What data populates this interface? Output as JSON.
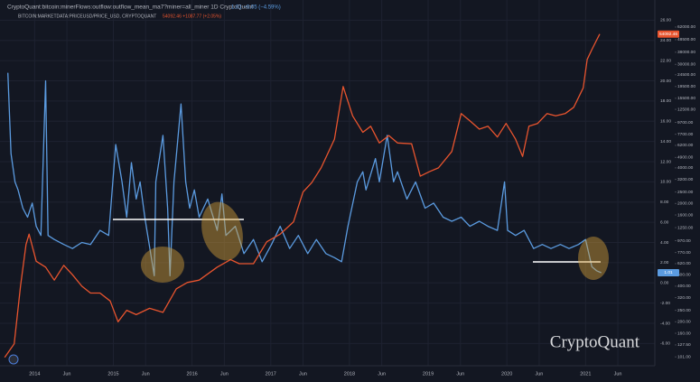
{
  "chart_data": {
    "type": "line",
    "watermark": "CryptoQuant",
    "grid": true,
    "y2log": true,
    "xlim": [
      2013.56,
      2021.88
    ],
    "ylim": [
      -8.2,
      28
    ],
    "y2lim": [
      85,
      105000
    ],
    "xticks": [
      2014,
      {
        "value": 2014.41,
        "label": "Jun"
      },
      2015,
      {
        "value": 2015.41,
        "label": "Jun"
      },
      2016,
      {
        "value": 2016.41,
        "label": "Jun"
      },
      2017,
      {
        "value": 2017.41,
        "label": "Jun"
      },
      2018,
      {
        "value": 2018.41,
        "label": "Jun"
      },
      2019,
      {
        "value": 2019.41,
        "label": "Jun"
      },
      2020,
      {
        "value": 2020.41,
        "label": "Jun"
      },
      2021,
      {
        "value": 2021.41,
        "label": "Jun"
      }
    ],
    "yticks": [
      {
        "value": 26,
        "label": "26.00"
      },
      {
        "value": 24,
        "label": "24.00"
      },
      {
        "value": 22,
        "label": "22.00"
      },
      {
        "value": 20,
        "label": "20.00"
      },
      {
        "value": 18,
        "label": "18.00"
      },
      {
        "value": 16,
        "label": "16.00"
      },
      {
        "value": 14,
        "label": "14.00"
      },
      {
        "value": 12,
        "label": "12.00"
      },
      {
        "value": 10,
        "label": "10.00"
      },
      {
        "value": 8,
        "label": "8.00"
      },
      {
        "value": 6,
        "label": "6.00"
      },
      {
        "value": 4,
        "label": "4.00"
      },
      {
        "value": 2,
        "label": "2.00"
      },
      {
        "value": 0,
        "label": "0.00"
      },
      {
        "value": -2,
        "label": "-2.00"
      },
      {
        "value": -4,
        "label": "-4.00"
      },
      {
        "value": -6,
        "label": "-6.00"
      }
    ],
    "y2ticks": [
      {
        "value": 62000,
        "label": "62000.00"
      },
      {
        "value": 48500,
        "label": "48500.00"
      },
      {
        "value": 38000,
        "label": "38000.00"
      },
      {
        "value": 30000,
        "label": "30000.00"
      },
      {
        "value": 24500,
        "label": "24500.00"
      },
      {
        "value": 19500,
        "label": "19500.00"
      },
      {
        "value": 15500,
        "label": "15500.00"
      },
      {
        "value": 12500,
        "label": "12500.00"
      },
      {
        "value": 9700,
        "label": "9700.00"
      },
      {
        "value": 7700,
        "label": "7700.00"
      },
      {
        "value": 6200,
        "label": "6200.00"
      },
      {
        "value": 4900,
        "label": "4900.00"
      },
      {
        "value": 4000,
        "label": "4000.00"
      },
      {
        "value": 3200,
        "label": "3200.00"
      },
      {
        "value": 2500,
        "label": "2500.00"
      },
      {
        "value": 2000,
        "label": "2000.00"
      },
      {
        "value": 1600,
        "label": "1600.00"
      },
      {
        "value": 1250,
        "label": "1250.00"
      },
      {
        "value": 970,
        "label": "970.00"
      },
      {
        "value": 770,
        "label": "770.00"
      },
      {
        "value": 620,
        "label": "620.00"
      },
      {
        "value": 500,
        "label": "500.00"
      },
      {
        "value": 400,
        "label": "400.00"
      },
      {
        "value": 320,
        "label": "320.00"
      },
      {
        "value": 250,
        "label": "250.00"
      },
      {
        "value": 200,
        "label": "200.00"
      },
      {
        "value": 160,
        "label": "160.00"
      },
      {
        "value": 127.5,
        "label": "127.50"
      },
      {
        "value": 101,
        "label": "101.00"
      }
    ],
    "series": [
      {
        "name": "CryptoQuant:bitcoin:minerFlows:outflow:outflow_mean_ma7?miner=all_miner  1D  CryptoQuant",
        "readout": "1.01  −0.05 (−4.59%)",
        "color": "#5b9be0",
        "axis": "y",
        "last_value": 1.01,
        "x": [
          2013.66,
          2013.7,
          2013.75,
          2013.79,
          2013.85,
          2013.91,
          2013.97,
          2014.02,
          2014.08,
          2014.14,
          2014.17,
          2014.25,
          2014.37,
          2014.48,
          2014.6,
          2014.71,
          2014.83,
          2014.94,
          2015.03,
          2015.11,
          2015.17,
          2015.23,
          2015.29,
          2015.34,
          2015.4,
          2015.52,
          2015.54,
          2015.63,
          2015.69,
          2015.72,
          2015.77,
          2015.86,
          2015.92,
          2015.97,
          2016.03,
          2016.09,
          2016.2,
          2016.32,
          2016.38,
          2016.43,
          2016.55,
          2016.66,
          2016.78,
          2016.89,
          2017.01,
          2017.12,
          2017.24,
          2017.35,
          2017.47,
          2017.58,
          2017.7,
          2017.81,
          2017.9,
          2017.98,
          2018.1,
          2018.17,
          2018.21,
          2018.33,
          2018.38,
          2018.48,
          2018.56,
          2018.61,
          2018.73,
          2018.84,
          2018.96,
          2019.07,
          2019.19,
          2019.3,
          2019.42,
          2019.53,
          2019.65,
          2019.76,
          2019.88,
          2019.97,
          2020.01,
          2020.11,
          2020.22,
          2020.34,
          2020.45,
          2020.56,
          2020.68,
          2020.79,
          2020.91,
          2021.0,
          2021.08,
          2021.14,
          2021.2
        ],
        "values": [
          20.8,
          12.8,
          10,
          9.2,
          7.4,
          6.5,
          7.9,
          5.6,
          4.7,
          20,
          4.7,
          4.3,
          3.8,
          3.4,
          4,
          3.8,
          5.2,
          4.7,
          13.7,
          10,
          6.5,
          11.9,
          8.3,
          10,
          6.5,
          0.7,
          10,
          14.6,
          7.4,
          0.7,
          10,
          17.7,
          10,
          7.4,
          9.2,
          6.5,
          8.3,
          5.2,
          8.8,
          4.7,
          5.6,
          2.9,
          4.3,
          2.1,
          3.8,
          5.6,
          3.4,
          4.7,
          2.9,
          4.3,
          2.9,
          2.5,
          2.1,
          5.6,
          10,
          11,
          9.2,
          12.3,
          10,
          14.6,
          10,
          11,
          8.3,
          10,
          7.4,
          7.9,
          6.5,
          6.1,
          6.5,
          5.6,
          6.1,
          5.6,
          5.2,
          10,
          5.2,
          4.7,
          5.2,
          3.4,
          3.8,
          3.4,
          3.8,
          3.4,
          3.8,
          4.3,
          1.6,
          1.2,
          1.01
        ]
      },
      {
        "name": "BITCOIN:MARKETDATA:PRICEUSD/PRICE_USD, CRYPTOQUANT",
        "readout": "54092.46  +1087.77 (+2.05%)",
        "color": "#e8542e",
        "axis": "y2",
        "last_value": 54092.46,
        "x": [
          2013.62,
          2013.74,
          2013.82,
          2013.89,
          2013.93,
          2014.02,
          2014.14,
          2014.25,
          2014.37,
          2014.48,
          2014.6,
          2014.71,
          2014.83,
          2014.96,
          2015.06,
          2015.17,
          2015.29,
          2015.46,
          2015.63,
          2015.8,
          2015.94,
          2016.09,
          2016.32,
          2016.49,
          2016.6,
          2016.78,
          2016.95,
          2017.12,
          2017.29,
          2017.41,
          2017.52,
          2017.64,
          2017.81,
          2017.92,
          2018.04,
          2018.17,
          2018.27,
          2018.38,
          2018.5,
          2018.61,
          2018.79,
          2018.9,
          2019.01,
          2019.13,
          2019.3,
          2019.42,
          2019.53,
          2019.65,
          2019.76,
          2019.88,
          2019.99,
          2020.11,
          2020.2,
          2020.28,
          2020.39,
          2020.51,
          2020.62,
          2020.74,
          2020.85,
          2020.97,
          2021.02,
          2021.08,
          2021.14,
          2021.18
        ],
        "values": [
          100,
          130,
          400,
          900,
          1100,
          650,
          580,
          450,
          600,
          500,
          400,
          350,
          350,
          300,
          200,
          250,
          230,
          260,
          240,
          380,
          430,
          450,
          580,
          670,
          620,
          620,
          950,
          1100,
          1400,
          2500,
          3000,
          4000,
          7000,
          19500,
          11000,
          8000,
          9000,
          6500,
          7500,
          6500,
          6400,
          3400,
          3700,
          4000,
          5500,
          11500,
          10000,
          8500,
          9000,
          7300,
          9500,
          7000,
          5000,
          9000,
          9500,
          11500,
          11000,
          11500,
          13000,
          19000,
          33000,
          40000,
          48000,
          54092.46
        ]
      }
    ]
  }
}
